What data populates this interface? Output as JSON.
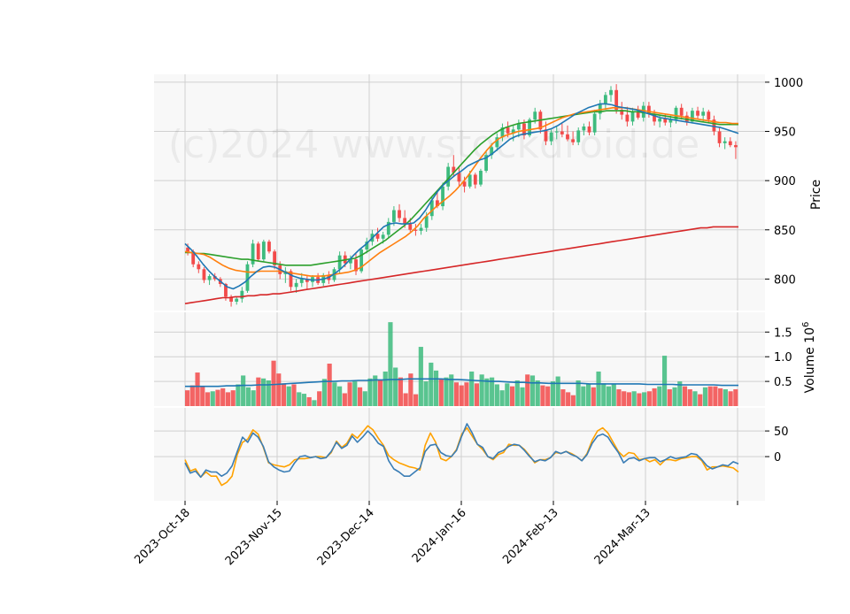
{
  "chart_data": {
    "type": "candlestick",
    "watermark": "(c)2024 www.stockdroid.de",
    "x_tick_labels": [
      "2023-Oct-18",
      "2023-Nov-15",
      "2023-Dec-14",
      "2024-Jan-16",
      "2024-Feb-13",
      "2024-Mar-13"
    ],
    "colors": {
      "up": "#3dbb7e",
      "down": "#f24a4a",
      "ma_short": "#1f77b4",
      "ma_mid": "#ff7f0e",
      "ma_long": "#2ca02c",
      "ma_200": "#d62728",
      "osc_a": "#3a7db5",
      "osc_b": "#ffa200",
      "panel_bg": "#f8f8f8",
      "grid": "#d0d0d0"
    },
    "price_panel": {
      "ylabel": "Price",
      "ylim": [
        768,
        1008
      ],
      "yticks": [
        800,
        850,
        900,
        950,
        1000
      ],
      "candles": [
        [
          832,
          836,
          824,
          828
        ],
        [
          828,
          830,
          812,
          815
        ],
        [
          815,
          818,
          806,
          810
        ],
        [
          810,
          812,
          796,
          799
        ],
        [
          799,
          805,
          794,
          803
        ],
        [
          803,
          806,
          798,
          800
        ],
        [
          800,
          802,
          792,
          795
        ],
        [
          795,
          796,
          778,
          782
        ],
        [
          782,
          784,
          772,
          777
        ],
        [
          777,
          782,
          774,
          780
        ],
        [
          780,
          792,
          776,
          788
        ],
        [
          788,
          818,
          786,
          815
        ],
        [
          815,
          840,
          812,
          836
        ],
        [
          836,
          838,
          818,
          820
        ],
        [
          820,
          840,
          818,
          838
        ],
        [
          838,
          840,
          826,
          828
        ],
        [
          828,
          830,
          810,
          814
        ],
        [
          814,
          818,
          800,
          805
        ],
        [
          805,
          812,
          796,
          808
        ],
        [
          808,
          810,
          788,
          792
        ],
        [
          792,
          800,
          786,
          796
        ],
        [
          796,
          806,
          792,
          800
        ],
        [
          800,
          803,
          790,
          797
        ],
        [
          797,
          804,
          792,
          802
        ],
        [
          802,
          806,
          794,
          796
        ],
        [
          796,
          806,
          793,
          804
        ],
        [
          804,
          808,
          795,
          799
        ],
        [
          799,
          812,
          797,
          810
        ],
        [
          810,
          828,
          806,
          824
        ],
        [
          824,
          828,
          812,
          816
        ],
        [
          816,
          824,
          810,
          820
        ],
        [
          820,
          826,
          804,
          808
        ],
        [
          808,
          832,
          806,
          830
        ],
        [
          830,
          842,
          826,
          838
        ],
        [
          838,
          850,
          834,
          846
        ],
        [
          846,
          852,
          838,
          841
        ],
        [
          841,
          848,
          836,
          845
        ],
        [
          845,
          862,
          842,
          858
        ],
        [
          858,
          874,
          854,
          870
        ],
        [
          870,
          876,
          858,
          862
        ],
        [
          862,
          870,
          852,
          856
        ],
        [
          856,
          862,
          848,
          850
        ],
        [
          850,
          856,
          844,
          849
        ],
        [
          849,
          856,
          845,
          852
        ],
        [
          852,
          868,
          848,
          864
        ],
        [
          864,
          884,
          860,
          880
        ],
        [
          880,
          890,
          872,
          874
        ],
        [
          874,
          898,
          870,
          894
        ],
        [
          894,
          918,
          890,
          914
        ],
        [
          914,
          926,
          904,
          908
        ],
        [
          908,
          914,
          894,
          899
        ],
        [
          899,
          904,
          888,
          894
        ],
        [
          894,
          910,
          892,
          906
        ],
        [
          906,
          908,
          892,
          896
        ],
        [
          896,
          912,
          894,
          910
        ],
        [
          910,
          930,
          908,
          926
        ],
        [
          926,
          938,
          922,
          934
        ],
        [
          934,
          948,
          930,
          944
        ],
        [
          944,
          958,
          940,
          954
        ],
        [
          954,
          960,
          944,
          948
        ],
        [
          948,
          956,
          940,
          952
        ],
        [
          952,
          962,
          944,
          958
        ],
        [
          958,
          962,
          942,
          946
        ],
        [
          946,
          964,
          944,
          962
        ],
        [
          962,
          974,
          958,
          970
        ],
        [
          970,
          972,
          948,
          952
        ],
        [
          952,
          960,
          936,
          940
        ],
        [
          940,
          952,
          936,
          949
        ],
        [
          949,
          956,
          942,
          950
        ],
        [
          950,
          958,
          944,
          947
        ],
        [
          947,
          956,
          940,
          942
        ],
        [
          942,
          950,
          936,
          939
        ],
        [
          939,
          954,
          936,
          951
        ],
        [
          951,
          958,
          946,
          955
        ],
        [
          955,
          960,
          946,
          949
        ],
        [
          949,
          972,
          946,
          968
        ],
        [
          968,
          982,
          962,
          978
        ],
        [
          978,
          990,
          972,
          987
        ],
        [
          987,
          996,
          980,
          992
        ],
        [
          992,
          998,
          968,
          972
        ],
        [
          972,
          980,
          962,
          967
        ],
        [
          967,
          975,
          955,
          960
        ],
        [
          960,
          974,
          956,
          970
        ],
        [
          970,
          976,
          962,
          964
        ],
        [
          964,
          980,
          960,
          976
        ],
        [
          976,
          980,
          964,
          968
        ],
        [
          968,
          972,
          956,
          960
        ],
        [
          960,
          966,
          954,
          963
        ],
        [
          963,
          968,
          956,
          959
        ],
        [
          959,
          966,
          954,
          962
        ],
        [
          962,
          976,
          958,
          974
        ],
        [
          974,
          978,
          962,
          966
        ],
        [
          966,
          970,
          956,
          960
        ],
        [
          960,
          974,
          958,
          971
        ],
        [
          971,
          975,
          962,
          966
        ],
        [
          966,
          974,
          960,
          970
        ],
        [
          970,
          972,
          958,
          962
        ],
        [
          962,
          966,
          946,
          950
        ],
        [
          950,
          954,
          934,
          938
        ],
        [
          938,
          944,
          932,
          940
        ],
        [
          940,
          944,
          934,
          936
        ],
        [
          936,
          940,
          922,
          934
        ]
      ],
      "ma_short": [
        836,
        830,
        823,
        815,
        808,
        802,
        797,
        792,
        790,
        793,
        797,
        803,
        808,
        812,
        813,
        812,
        809,
        806,
        803,
        801,
        800,
        799,
        799,
        800,
        802,
        806,
        811,
        817,
        824,
        830,
        835,
        841,
        847,
        853,
        856,
        857,
        856,
        856,
        857,
        862,
        870,
        880,
        889,
        896,
        901,
        906,
        910,
        915,
        918,
        921,
        923,
        927,
        932,
        937,
        942,
        945,
        947,
        948,
        949,
        950,
        951,
        953,
        956,
        960,
        964,
        968,
        971,
        974,
        976,
        978,
        978,
        977,
        975,
        974,
        973,
        972,
        970,
        968,
        966,
        964,
        963,
        962,
        961,
        960,
        959,
        958,
        957,
        956,
        955,
        954,
        952,
        950,
        948
      ],
      "ma_mid": [
        828,
        827,
        826,
        825,
        822,
        818,
        814,
        811,
        809,
        808,
        807,
        807,
        808,
        808,
        808,
        808,
        807,
        806,
        805,
        804,
        803,
        803,
        803,
        804,
        805,
        806,
        807,
        809,
        812,
        817,
        822,
        827,
        831,
        835,
        839,
        843,
        848,
        854,
        862,
        868,
        874,
        879,
        884,
        890,
        897,
        905,
        914,
        923,
        931,
        938,
        943,
        946,
        948,
        950,
        951,
        952,
        953,
        955,
        958,
        961,
        964,
        966,
        968,
        969,
        970,
        971,
        972,
        973,
        974,
        974,
        974,
        973,
        972,
        971,
        970,
        969,
        968,
        967,
        966,
        965,
        964,
        963,
        962,
        961,
        960,
        959,
        959,
        958,
        958
      ],
      "ma_long": [
        827,
        827,
        826,
        826,
        825,
        824,
        823,
        822,
        821,
        820,
        820,
        819,
        818,
        817,
        816,
        815,
        814,
        814,
        814,
        814,
        814,
        815,
        816,
        817,
        818,
        819,
        820,
        821,
        824,
        828,
        832,
        836,
        840,
        845,
        850,
        855,
        861,
        868,
        875,
        882,
        889,
        896,
        903,
        910,
        917,
        924,
        931,
        937,
        942,
        947,
        951,
        954,
        956,
        958,
        959,
        960,
        961,
        962,
        963,
        964,
        965,
        966,
        967,
        968,
        969,
        970,
        970,
        971,
        971,
        971,
        971,
        970,
        970,
        969,
        968,
        967,
        966,
        965,
        964,
        963,
        962,
        961,
        960,
        959,
        958,
        957,
        957,
        957,
        957
      ],
      "ma_200": [
        775,
        776,
        777,
        778,
        779,
        780,
        781,
        781,
        782,
        782,
        783,
        783,
        784,
        784,
        785,
        785,
        786,
        787,
        788,
        789,
        790,
        791,
        792,
        793,
        794,
        795,
        796,
        797,
        798,
        799,
        800,
        801,
        802,
        803,
        804,
        805,
        806,
        807,
        808,
        809,
        810,
        811,
        812,
        813,
        814,
        815,
        816,
        817,
        818,
        819,
        820,
        821,
        822,
        823,
        824,
        825,
        826,
        827,
        828,
        829,
        830,
        831,
        832,
        833,
        834,
        835,
        836,
        837,
        838,
        839,
        840,
        841,
        842,
        843,
        844,
        845,
        846,
        847,
        848,
        849,
        850,
        851,
        852,
        852,
        853,
        853,
        853,
        853,
        853
      ]
    },
    "volume_panel": {
      "ylabel": "Volume  10^6",
      "ylim": [
        0,
        1.9
      ],
      "yticks": [
        0.5,
        1.0,
        1.5
      ],
      "ytick_labels": [
        "0.5",
        "1.0",
        "1.5"
      ],
      "volumes": [
        0.32,
        0.42,
        0.68,
        0.4,
        0.28,
        0.3,
        0.33,
        0.36,
        0.28,
        0.32,
        0.44,
        0.62,
        0.38,
        0.32,
        0.58,
        0.56,
        0.52,
        0.92,
        0.66,
        0.46,
        0.4,
        0.44,
        0.28,
        0.25,
        0.18,
        0.12,
        0.3,
        0.55,
        0.86,
        0.48,
        0.4,
        0.26,
        0.48,
        0.5,
        0.38,
        0.3,
        0.56,
        0.62,
        0.52,
        0.7,
        1.7,
        0.78,
        0.58,
        0.26,
        0.66,
        0.24,
        1.2,
        0.5,
        0.88,
        0.72,
        0.56,
        0.58,
        0.64,
        0.48,
        0.42,
        0.48,
        0.7,
        0.46,
        0.64,
        0.56,
        0.58,
        0.44,
        0.32,
        0.46,
        0.4,
        0.52,
        0.38,
        0.64,
        0.62,
        0.52,
        0.42,
        0.4,
        0.5,
        0.6,
        0.34,
        0.28,
        0.22,
        0.52,
        0.4,
        0.44,
        0.38,
        0.7,
        0.46,
        0.4,
        0.44,
        0.34,
        0.3,
        0.28,
        0.3,
        0.26,
        0.28,
        0.3,
        0.36,
        0.4,
        1.02,
        0.34,
        0.38,
        0.5,
        0.4,
        0.34,
        0.3,
        0.24,
        0.38,
        0.4,
        0.4,
        0.36,
        0.34,
        0.3,
        0.34
      ],
      "volume_ma": [
        0.4,
        0.4,
        0.4,
        0.4,
        0.4,
        0.41,
        0.41,
        0.42,
        0.42,
        0.43,
        0.43,
        0.44,
        0.45,
        0.46,
        0.47,
        0.48,
        0.49,
        0.5,
        0.5,
        0.51,
        0.51,
        0.52,
        0.52,
        0.53,
        0.53,
        0.54,
        0.54,
        0.55,
        0.55,
        0.55,
        0.55,
        0.55,
        0.54,
        0.54,
        0.53,
        0.52,
        0.51,
        0.5,
        0.5,
        0.49,
        0.48,
        0.48,
        0.47,
        0.47,
        0.46,
        0.46,
        0.46,
        0.46,
        0.46,
        0.45,
        0.45,
        0.45,
        0.45,
        0.45,
        0.45,
        0.45,
        0.44,
        0.44,
        0.44,
        0.44,
        0.43,
        0.43,
        0.43,
        0.43,
        0.43,
        0.42,
        0.42,
        0.42
      ]
    },
    "oscillator_panel": {
      "ylim": [
        -86,
        95
      ],
      "yticks": [
        0,
        50
      ],
      "line_a": [
        -12,
        -32,
        -28,
        -40,
        -26,
        -30,
        -30,
        -38,
        -32,
        -18,
        10,
        38,
        28,
        46,
        38,
        20,
        -10,
        -20,
        -26,
        -30,
        -28,
        -12,
        0,
        2,
        -2,
        0,
        -4,
        -2,
        10,
        28,
        16,
        22,
        40,
        28,
        38,
        50,
        40,
        26,
        20,
        -8,
        -24,
        -30,
        -38,
        -38,
        -30,
        -22,
        10,
        22,
        24,
        8,
        2,
        0,
        12,
        40,
        64,
        46,
        24,
        18,
        0,
        -4,
        8,
        12,
        20,
        24,
        22,
        12,
        0,
        -10,
        -6,
        -8,
        -2,
        10,
        6,
        10,
        4,
        0,
        -8,
        4,
        26,
        40,
        44,
        38,
        22,
        8,
        -12,
        -4,
        -2,
        -8,
        -4,
        -2,
        -2,
        -10,
        -6,
        0,
        -4,
        -2,
        0,
        6,
        4,
        -6,
        -18,
        -24,
        -20,
        -16,
        -18,
        -10,
        -14
      ],
      "line_b": [
        -6,
        -28,
        -24,
        -40,
        -30,
        -38,
        -38,
        -56,
        -50,
        -38,
        4,
        28,
        34,
        52,
        44,
        18,
        -12,
        -16,
        -18,
        -20,
        -16,
        -6,
        -4,
        -4,
        -2,
        0,
        0,
        -2,
        8,
        30,
        18,
        26,
        44,
        36,
        48,
        60,
        52,
        36,
        22,
        2,
        -6,
        -12,
        -16,
        -20,
        -22,
        -26,
        22,
        46,
        28,
        -4,
        -8,
        0,
        14,
        44,
        56,
        40,
        24,
        14,
        0,
        -6,
        4,
        8,
        24,
        22,
        22,
        14,
        2,
        -12,
        -6,
        -6,
        -2,
        8,
        6,
        10,
        6,
        0,
        -8,
        6,
        32,
        50,
        56,
        46,
        28,
        10,
        0,
        8,
        6,
        -6,
        -4,
        -10,
        -6,
        -16,
        -6,
        -6,
        -8,
        -4,
        -2,
        0,
        0,
        -8,
        -26,
        -20,
        -20,
        -18,
        -20,
        -22,
        -30
      ]
    }
  }
}
